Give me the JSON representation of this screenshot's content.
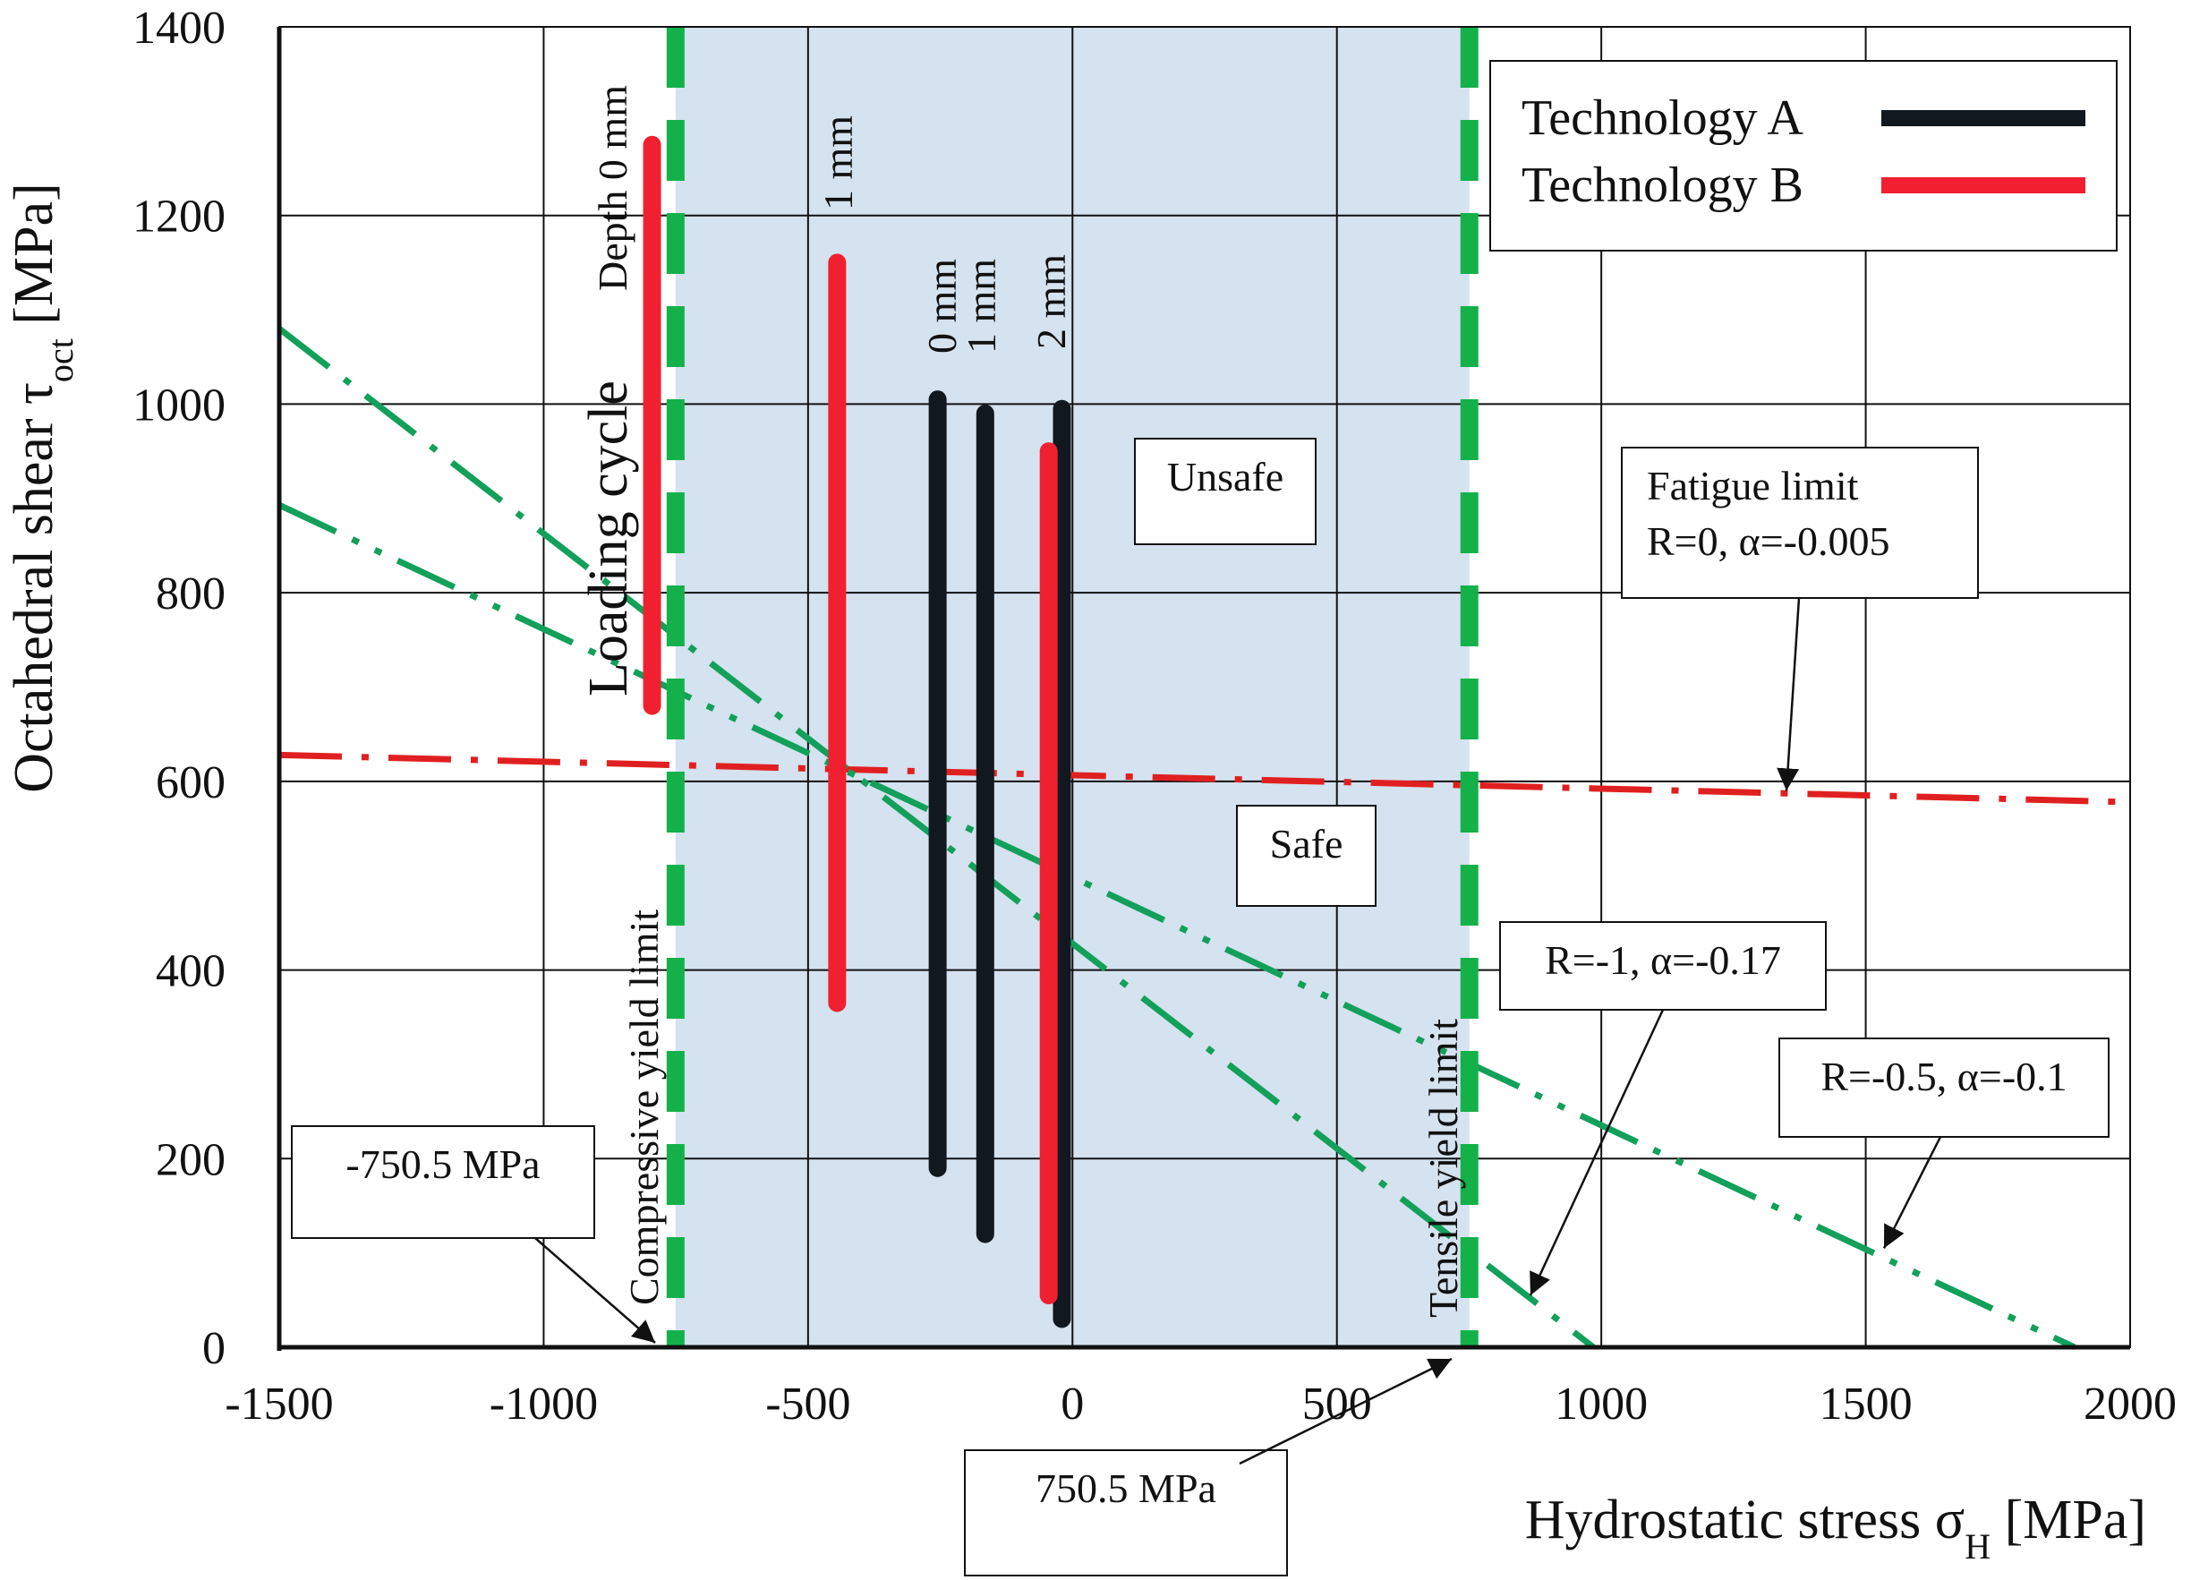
{
  "chart_data": {
    "type": "line",
    "xlabel": "Hydrostatic stress σH [MPa]",
    "xlabel_main": "Hydrostatic stress σ",
    "xlabel_sub": "H",
    "xlabel_unit": " [MPa]",
    "ylabel": "Octahedral shear τoct [MPa]",
    "ylabel_main": "Octahedral shear τ",
    "ylabel_sub": "oct",
    "ylabel_unit": " [MPa]",
    "xlim": [
      -1500,
      2000
    ],
    "ylim": [
      0,
      1400
    ],
    "x_ticks": [
      -1500,
      -1000,
      -500,
      0,
      500,
      1000,
      1500,
      2000
    ],
    "x_tick_labels": [
      "-1500",
      "-1000",
      "-500",
      "0",
      "500",
      "1000",
      "1500",
      "2000"
    ],
    "y_ticks": [
      0,
      200,
      400,
      600,
      800,
      1000,
      1200,
      1400
    ],
    "y_tick_labels": [
      "0",
      "200",
      "400",
      "600",
      "800",
      "1000",
      "1200",
      "1400"
    ],
    "grid": true,
    "legend_position": "top-right",
    "colors": {
      "safe_region": "#d5e2ef",
      "yield_limit": "#14b14a",
      "fatigue": "#12a05a",
      "fatigue_r0": "#e02020",
      "tech_a": "#111820",
      "tech_b": "#f02030"
    },
    "legend": [
      {
        "name": "Technology A",
        "color": "#111820"
      },
      {
        "name": "Technology B",
        "color": "#f02030"
      }
    ],
    "safe_region": {
      "x": [
        -750.5,
        750.5
      ]
    },
    "yield_limits": [
      {
        "label": "Compressive yield limit",
        "x": -750.5,
        "value_label": "-750.5 MPa"
      },
      {
        "label": "Tensile yield limit",
        "x": 750.5,
        "value_label": "750.5 MPa"
      }
    ],
    "fatigue_limits": [
      {
        "label": "Fatigue limit\nR=0, α=-0.005",
        "color_key": "fatigue_r0",
        "dash": "long-dot",
        "points": [
          [
            -1500,
            628
          ],
          [
            2000,
            578
          ]
        ]
      },
      {
        "label": "R=-1, α=-0.17",
        "color_key": "fatigue",
        "dash": "long-dot",
        "points": [
          [
            -1500,
            1080
          ],
          [
            985,
            0
          ]
        ]
      },
      {
        "label": "R=-0.5, α=-0.1",
        "color_key": "fatigue",
        "dash": "long-dot-dot",
        "points": [
          [
            -1500,
            893
          ],
          [
            1895,
            0
          ]
        ]
      }
    ],
    "loading_cycles": [
      {
        "series": "Technology B",
        "label": "Depth 0 mm",
        "x": -795,
        "y": [
          680,
          1275
        ]
      },
      {
        "series": "Technology B",
        "label": "1 mm",
        "x": -445,
        "y": [
          365,
          1150
        ]
      },
      {
        "series": "Technology A",
        "label": "0 mm",
        "x": -255,
        "y": [
          190,
          1005
        ]
      },
      {
        "series": "Technology A",
        "label": "1 mm",
        "x": -165,
        "y": [
          120,
          990
        ]
      },
      {
        "series": "Technology A",
        "label": "2 mm",
        "x": -20,
        "y": [
          30,
          995
        ]
      },
      {
        "series": "Technology B",
        "label": "",
        "x": -45,
        "y": [
          55,
          950
        ]
      }
    ],
    "annotations": {
      "loading_cycle": "Loading cycle",
      "unsafe": "Unsafe",
      "safe": "Safe",
      "fatigue_r0_line1": "Fatigue limit",
      "fatigue_r0_line2": "R=0, α=-0.005",
      "fatigue_r_m1": "R=-1, α=-0.17",
      "fatigue_r_m05": "R=-0.5, α=-0.1",
      "compressive_value": "-750.5 MPa",
      "tensile_value": "750.5 MPa"
    }
  }
}
